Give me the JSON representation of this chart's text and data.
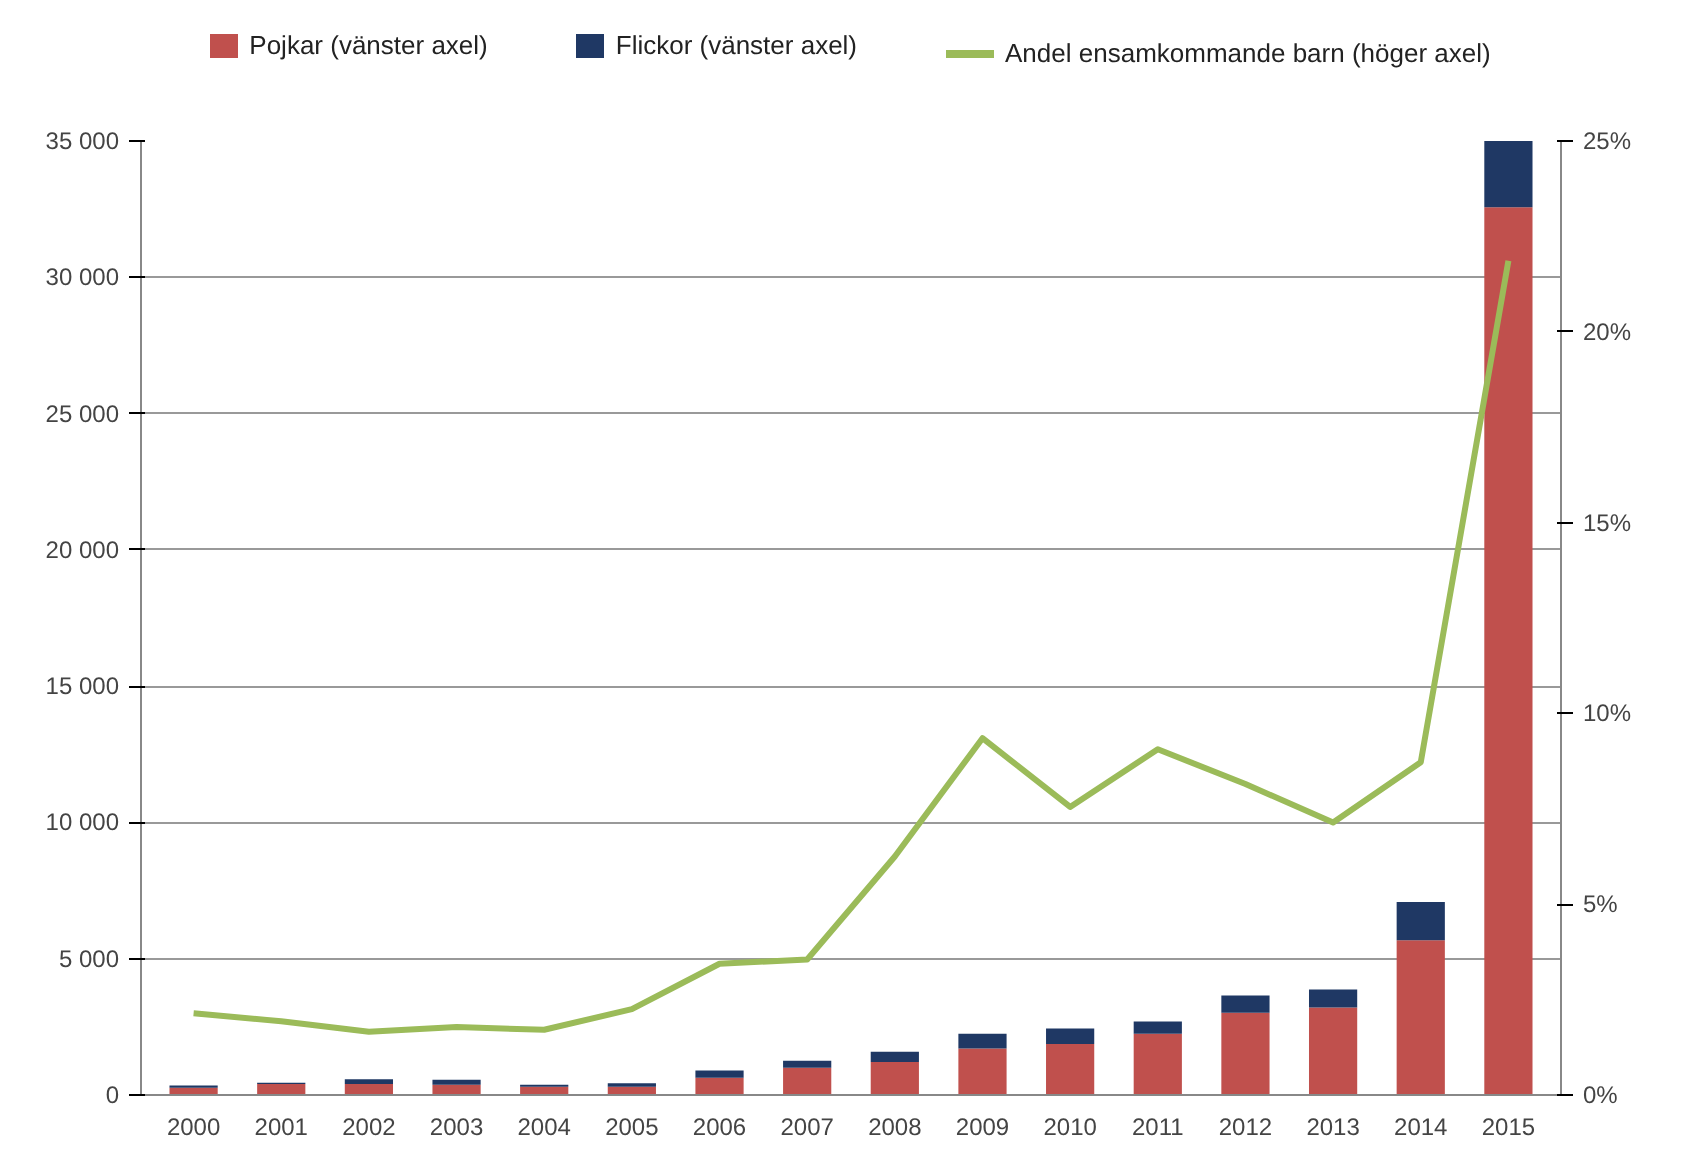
{
  "chart_data": {
    "type": "bar",
    "stacked": true,
    "categories": [
      "2000",
      "2001",
      "2002",
      "2003",
      "2004",
      "2005",
      "2006",
      "2007",
      "2008",
      "2009",
      "2010",
      "2011",
      "2012",
      "2013",
      "2014",
      "2015"
    ],
    "series": [
      {
        "name": "Pojkar (vänster axel)",
        "color": "#c0504d",
        "values": [
          270,
          400,
          400,
          380,
          300,
          300,
          630,
          1000,
          1210,
          1710,
          1870,
          2250,
          3020,
          3210,
          5680,
          32570
        ]
      },
      {
        "name": "Flickor (vänster axel)",
        "color": "#1f3864",
        "values": [
          80,
          50,
          180,
          180,
          80,
          130,
          270,
          260,
          380,
          540,
          570,
          450,
          630,
          660,
          1400,
          2430
        ]
      },
      {
        "name": "Andel ensamkommande barn (höger axel)",
        "type": "line",
        "axis": "y2",
        "color": "#9bbb59",
        "values": [
          2.14,
          1.93,
          1.66,
          1.78,
          1.71,
          2.25,
          3.44,
          3.55,
          6.25,
          9.35,
          7.55,
          9.06,
          8.15,
          7.14,
          8.72,
          21.86
        ]
      }
    ],
    "ylim": [
      0,
      35000
    ],
    "yticks": [
      {
        "value": 0,
        "label": "0"
      },
      {
        "value": 5000,
        "label": "5 000"
      },
      {
        "value": 10000,
        "label": "10 000"
      },
      {
        "value": 15000,
        "label": "15 000"
      },
      {
        "value": 20000,
        "label": "20 000"
      },
      {
        "value": 25000,
        "label": "25 000"
      },
      {
        "value": 30000,
        "label": "30 000"
      },
      {
        "value": 35000,
        "label": "35 000"
      }
    ],
    "y2lim": [
      0,
      25
    ],
    "y2ticks": [
      {
        "value": 0,
        "label": "0%"
      },
      {
        "value": 5,
        "label": "5%"
      },
      {
        "value": 10,
        "label": "10%"
      },
      {
        "value": 15,
        "label": "15%"
      },
      {
        "value": 20,
        "label": "20%"
      },
      {
        "value": 25,
        "label": "25%"
      }
    ],
    "grid": "y",
    "legend": "top"
  }
}
